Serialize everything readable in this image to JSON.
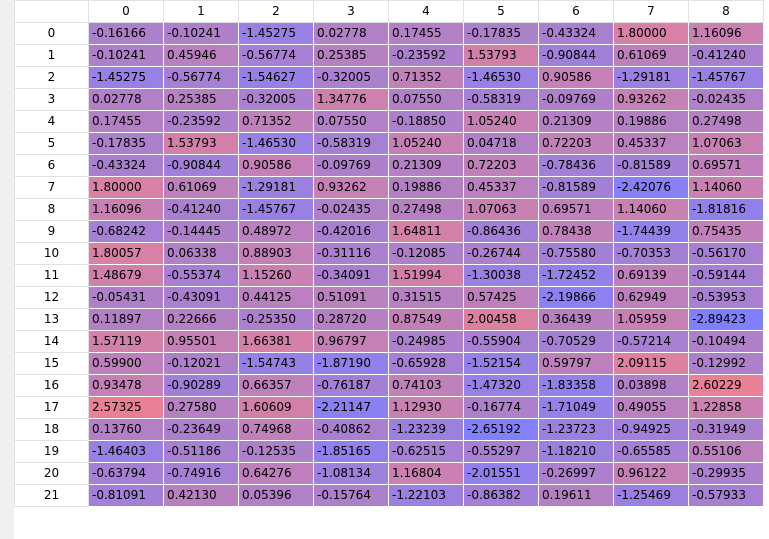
{
  "table": {
    "columns": [
      "0",
      "1",
      "2",
      "3",
      "4",
      "5",
      "6",
      "7",
      "8"
    ],
    "rows": [
      {
        "index": "0",
        "values": [
          -0.16166,
          -0.10241,
          -1.45275,
          0.02778,
          0.17455,
          -0.17835,
          -0.43324,
          1.8,
          1.16096
        ]
      },
      {
        "index": "1",
        "values": [
          -0.10241,
          0.45946,
          -0.56774,
          0.25385,
          -0.23592,
          1.53793,
          -0.90844,
          0.61069,
          -0.4124
        ]
      },
      {
        "index": "2",
        "values": [
          -1.45275,
          -0.56774,
          -1.54627,
          -0.32005,
          0.71352,
          -1.4653,
          0.90586,
          -1.29181,
          -1.45767
        ]
      },
      {
        "index": "3",
        "values": [
          0.02778,
          0.25385,
          -0.32005,
          1.34776,
          0.0755,
          -0.58319,
          -0.09769,
          0.93262,
          -0.02435
        ]
      },
      {
        "index": "4",
        "values": [
          0.17455,
          -0.23592,
          0.71352,
          0.0755,
          -0.1885,
          1.0524,
          0.21309,
          0.19886,
          0.27498
        ]
      },
      {
        "index": "5",
        "values": [
          -0.17835,
          1.53793,
          -1.4653,
          -0.58319,
          1.0524,
          0.04718,
          0.72203,
          0.45337,
          1.07063
        ]
      },
      {
        "index": "6",
        "values": [
          -0.43324,
          -0.90844,
          0.90586,
          -0.09769,
          0.21309,
          0.72203,
          -0.78436,
          -0.81589,
          0.69571
        ]
      },
      {
        "index": "7",
        "values": [
          1.8,
          0.61069,
          -1.29181,
          0.93262,
          0.19886,
          0.45337,
          -0.81589,
          -2.42076,
          1.1406
        ]
      },
      {
        "index": "8",
        "values": [
          1.16096,
          -0.4124,
          -1.45767,
          -0.02435,
          0.27498,
          1.07063,
          0.69571,
          1.1406,
          -1.81816
        ]
      },
      {
        "index": "9",
        "values": [
          -0.68242,
          -0.14445,
          0.48972,
          -0.42016,
          1.64811,
          -0.86436,
          0.78438,
          -1.74439,
          0.75435
        ]
      },
      {
        "index": "10",
        "values": [
          1.80057,
          0.06338,
          0.88903,
          -0.31116,
          -0.12085,
          -0.26744,
          -0.7558,
          -0.70353,
          -0.5617
        ]
      },
      {
        "index": "11",
        "values": [
          1.48679,
          -0.55374,
          1.1526,
          -0.34091,
          1.51994,
          -1.30038,
          -1.72452,
          0.69139,
          -0.59144
        ]
      },
      {
        "index": "12",
        "values": [
          -0.05431,
          -0.43091,
          0.44125,
          0.51091,
          0.31515,
          0.57425,
          -2.19866,
          0.62949,
          -0.53953
        ]
      },
      {
        "index": "13",
        "values": [
          0.11897,
          0.22666,
          -0.2535,
          0.2872,
          0.87549,
          2.00458,
          0.36439,
          1.05959,
          -2.89423
        ]
      },
      {
        "index": "14",
        "values": [
          1.57119,
          0.95501,
          1.66381,
          0.96797,
          -0.24985,
          -0.55904,
          -0.70529,
          -0.57214,
          -0.10494
        ]
      },
      {
        "index": "15",
        "values": [
          0.599,
          -0.12021,
          -1.54743,
          -1.8719,
          -0.65928,
          -1.52154,
          0.59797,
          2.09115,
          -0.12992
        ]
      },
      {
        "index": "16",
        "values": [
          0.93478,
          -0.90289,
          0.66357,
          -0.76187,
          0.74103,
          -1.4732,
          -1.83358,
          0.03898,
          2.60229
        ]
      },
      {
        "index": "17",
        "values": [
          2.57325,
          0.2758,
          1.60609,
          -2.21147,
          1.1293,
          -0.16774,
          -1.71049,
          0.49055,
          1.22858
        ]
      },
      {
        "index": "18",
        "values": [
          0.1376,
          -0.23649,
          0.74968,
          -0.40862,
          -1.23239,
          -2.65192,
          -1.23723,
          -0.94925,
          -0.31949
        ]
      },
      {
        "index": "19",
        "values": [
          -1.46403,
          -0.51186,
          -0.12535,
          -1.85165,
          -0.62515,
          -0.55297,
          -1.1821,
          -0.65585,
          0.55106
        ]
      },
      {
        "index": "20",
        "values": [
          -0.63794,
          -0.74916,
          0.64276,
          -1.08134,
          1.16804,
          -2.01551,
          -0.26997,
          0.96122,
          -0.29935
        ]
      },
      {
        "index": "21",
        "values": [
          -0.81091,
          0.4213,
          0.05396,
          -0.15764,
          -1.22103,
          -0.86382,
          0.19611,
          -1.25469,
          -0.57933
        ]
      }
    ]
  },
  "colors": {
    "low": "#8080ff",
    "mid": "#b080c8",
    "high": "#f08090"
  }
}
